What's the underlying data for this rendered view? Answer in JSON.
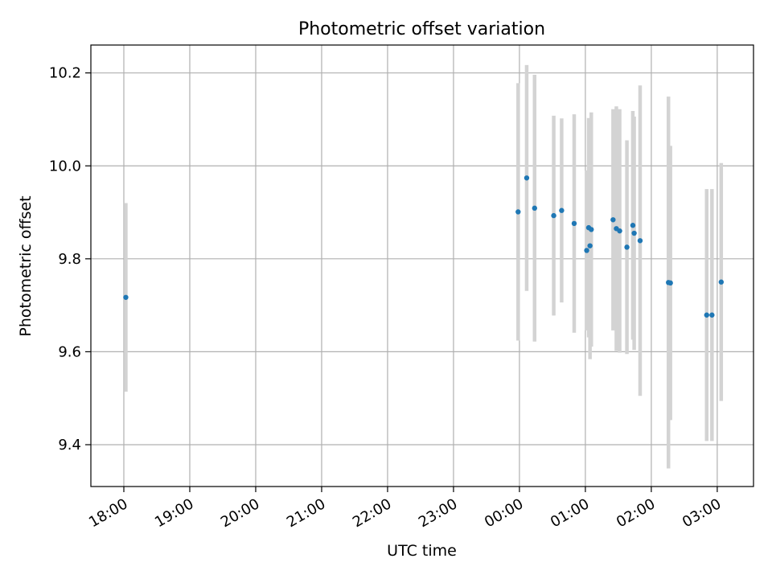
{
  "chart_data": {
    "type": "scatter",
    "title": "Photometric offset variation",
    "xlabel": "UTC time",
    "ylabel": "Photometric offset",
    "grid": true,
    "x_unit": "hours since 00:00 UTC",
    "xlim": [
      -6.5,
      3.55
    ],
    "ylim": [
      9.31,
      10.26
    ],
    "x_ticks": [
      {
        "value": -6,
        "label": "18:00"
      },
      {
        "value": -5,
        "label": "19:00"
      },
      {
        "value": -4,
        "label": "20:00"
      },
      {
        "value": -3,
        "label": "21:00"
      },
      {
        "value": -2,
        "label": "22:00"
      },
      {
        "value": -1,
        "label": "23:00"
      },
      {
        "value": 0,
        "label": "00:00"
      },
      {
        "value": 1,
        "label": "01:00"
      },
      {
        "value": 2,
        "label": "02:00"
      },
      {
        "value": 3,
        "label": "03:00"
      }
    ],
    "y_ticks": [
      {
        "value": 9.4,
        "label": "9.4"
      },
      {
        "value": 9.6,
        "label": "9.6"
      },
      {
        "value": 9.8,
        "label": "9.8"
      },
      {
        "value": 10.0,
        "label": "10.0"
      },
      {
        "value": 10.2,
        "label": "10.2"
      }
    ],
    "colors": {
      "points": "#1f77b4",
      "errorbars": "#d3d3d3",
      "grid": "#b0b0b0",
      "axes": "#000000"
    },
    "points": [
      {
        "x": -5.97,
        "y": 9.717,
        "err": 0.203
      },
      {
        "x": -0.02,
        "y": 9.901,
        "err": 0.277
      },
      {
        "x": 0.11,
        "y": 9.974,
        "err": 0.243
      },
      {
        "x": 0.23,
        "y": 9.909,
        "err": 0.287
      },
      {
        "x": 0.52,
        "y": 9.893,
        "err": 0.215
      },
      {
        "x": 0.64,
        "y": 9.904,
        "err": 0.198
      },
      {
        "x": 0.83,
        "y": 9.876,
        "err": 0.235
      },
      {
        "x": 1.02,
        "y": 9.818,
        "err": 0.172
      },
      {
        "x": 1.05,
        "y": 9.867,
        "err": 0.236
      },
      {
        "x": 1.07,
        "y": 9.828,
        "err": 0.244
      },
      {
        "x": 1.09,
        "y": 9.863,
        "err": 0.252
      },
      {
        "x": 1.42,
        "y": 9.884,
        "err": 0.238
      },
      {
        "x": 1.47,
        "y": 9.865,
        "err": 0.263
      },
      {
        "x": 1.52,
        "y": 9.86,
        "err": 0.262
      },
      {
        "x": 1.63,
        "y": 9.825,
        "err": 0.23
      },
      {
        "x": 1.72,
        "y": 9.872,
        "err": 0.246
      },
      {
        "x": 1.74,
        "y": 9.855,
        "err": 0.251
      },
      {
        "x": 1.83,
        "y": 9.839,
        "err": 0.334
      },
      {
        "x": 2.26,
        "y": 9.749,
        "err": 0.4
      },
      {
        "x": 2.29,
        "y": 9.748,
        "err": 0.295
      },
      {
        "x": 2.84,
        "y": 9.679,
        "err": 0.271
      },
      {
        "x": 2.92,
        "y": 9.679,
        "err": 0.271
      },
      {
        "x": 3.06,
        "y": 9.75,
        "err": 0.256
      }
    ]
  }
}
